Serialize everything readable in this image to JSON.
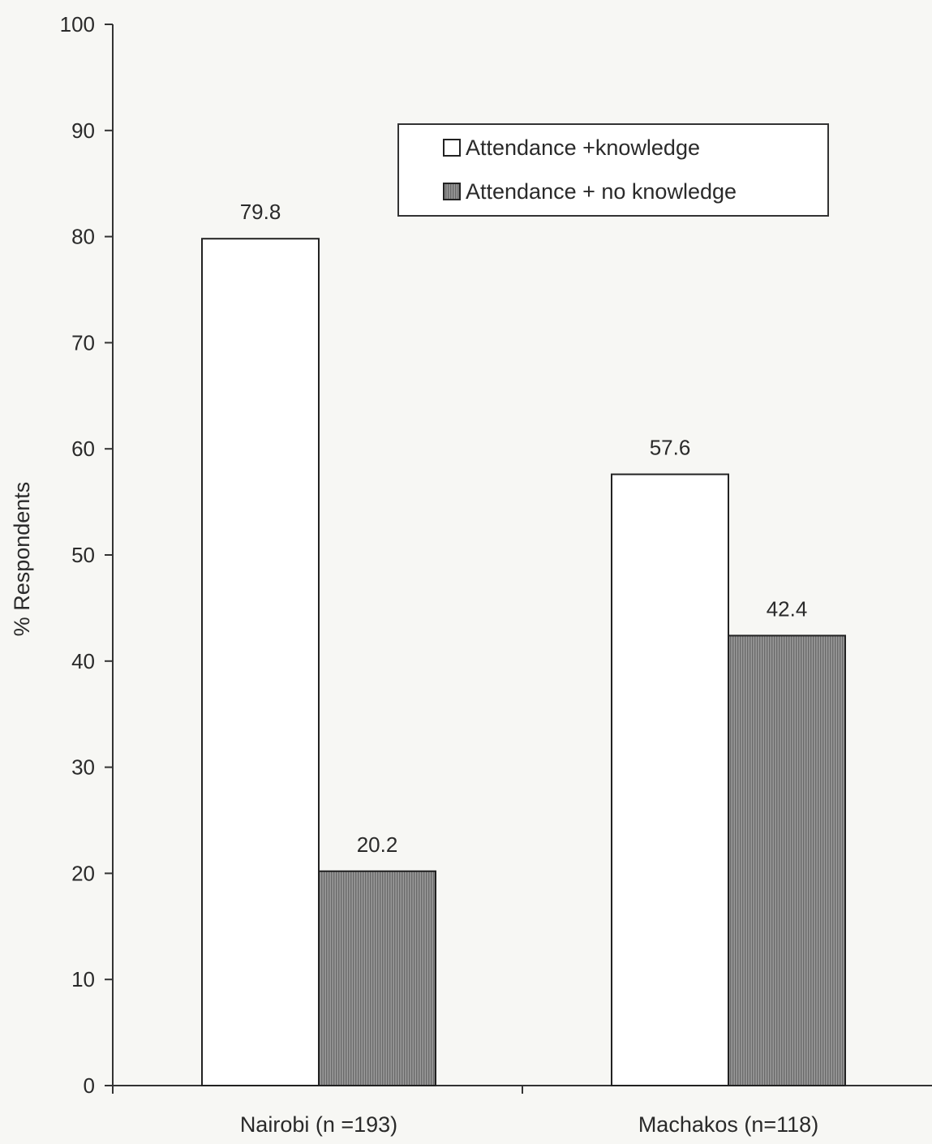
{
  "chart_data": {
    "type": "bar",
    "categories": [
      "Nairobi (n =193)",
      "Machakos (n=118)"
    ],
    "series": [
      {
        "name": "Attendance +knowledge",
        "values": [
          79.8,
          57.6
        ],
        "fill": "#ffffff"
      },
      {
        "name": "Attendance + no knowledge",
        "values": [
          20.2,
          42.4
        ],
        "fill": "#9a9a9a"
      }
    ],
    "data_labels": [
      [
        "79.8",
        "57.6"
      ],
      [
        "20.2",
        "42.4"
      ]
    ],
    "ylabel": "% Respondents",
    "xlabel": "",
    "ylim": [
      0,
      100
    ],
    "yticks": [
      0,
      10,
      20,
      30,
      40,
      50,
      60,
      70,
      80,
      90,
      100
    ],
    "grid": false,
    "legend_position": "top-right",
    "colors": {
      "outline": "#222222",
      "hatch_base": "#9a9a9a",
      "hatch_line": "#555555",
      "background": "#f7f7f4"
    }
  }
}
